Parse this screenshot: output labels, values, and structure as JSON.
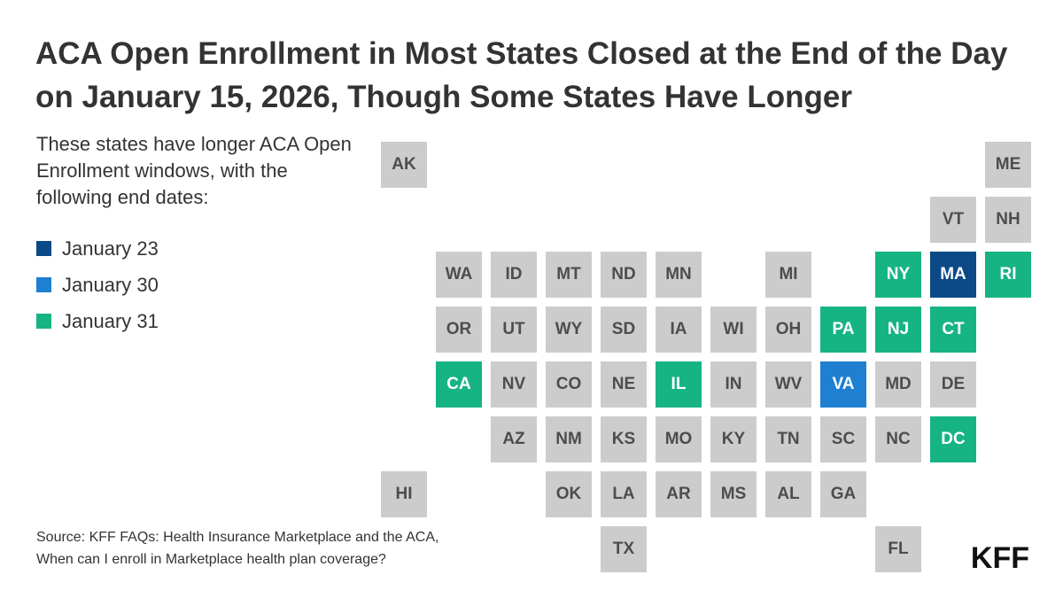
{
  "title": "ACA Open Enrollment in Most States Closed at the End of the Day on January 15, 2026, Though Some States Have Longer",
  "subtitle": "These states have longer ACA Open Enrollment windows, with the following end dates:",
  "legend": [
    {
      "label": "January 23",
      "color": "#0b4a86"
    },
    {
      "label": "January 30",
      "color": "#1f7fd1"
    },
    {
      "label": "January 31",
      "color": "#17b483"
    }
  ],
  "default_color": "#cccccc",
  "states": [
    {
      "code": "AK",
      "col": 0,
      "row": 0,
      "cat": 0
    },
    {
      "code": "ME",
      "col": 11,
      "row": 0,
      "cat": 0
    },
    {
      "code": "VT",
      "col": 10,
      "row": 1,
      "cat": 0
    },
    {
      "code": "NH",
      "col": 11,
      "row": 1,
      "cat": 0
    },
    {
      "code": "WA",
      "col": 1,
      "row": 2,
      "cat": 0
    },
    {
      "code": "ID",
      "col": 2,
      "row": 2,
      "cat": 0
    },
    {
      "code": "MT",
      "col": 3,
      "row": 2,
      "cat": 0
    },
    {
      "code": "ND",
      "col": 4,
      "row": 2,
      "cat": 0
    },
    {
      "code": "MN",
      "col": 5,
      "row": 2,
      "cat": 0
    },
    {
      "code": "MI",
      "col": 7,
      "row": 2,
      "cat": 0
    },
    {
      "code": "NY",
      "col": 9,
      "row": 2,
      "cat": 3
    },
    {
      "code": "MA",
      "col": 10,
      "row": 2,
      "cat": 1
    },
    {
      "code": "RI",
      "col": 11,
      "row": 2,
      "cat": 3
    },
    {
      "code": "OR",
      "col": 1,
      "row": 3,
      "cat": 0
    },
    {
      "code": "UT",
      "col": 2,
      "row": 3,
      "cat": 0
    },
    {
      "code": "WY",
      "col": 3,
      "row": 3,
      "cat": 0
    },
    {
      "code": "SD",
      "col": 4,
      "row": 3,
      "cat": 0
    },
    {
      "code": "IA",
      "col": 5,
      "row": 3,
      "cat": 0
    },
    {
      "code": "WI",
      "col": 6,
      "row": 3,
      "cat": 0
    },
    {
      "code": "OH",
      "col": 7,
      "row": 3,
      "cat": 0
    },
    {
      "code": "PA",
      "col": 8,
      "row": 3,
      "cat": 3
    },
    {
      "code": "NJ",
      "col": 9,
      "row": 3,
      "cat": 3
    },
    {
      "code": "CT",
      "col": 10,
      "row": 3,
      "cat": 3
    },
    {
      "code": "CA",
      "col": 1,
      "row": 4,
      "cat": 3
    },
    {
      "code": "NV",
      "col": 2,
      "row": 4,
      "cat": 0
    },
    {
      "code": "CO",
      "col": 3,
      "row": 4,
      "cat": 0
    },
    {
      "code": "NE",
      "col": 4,
      "row": 4,
      "cat": 0
    },
    {
      "code": "IL",
      "col": 5,
      "row": 4,
      "cat": 3
    },
    {
      "code": "IN",
      "col": 6,
      "row": 4,
      "cat": 0
    },
    {
      "code": "WV",
      "col": 7,
      "row": 4,
      "cat": 0
    },
    {
      "code": "VA",
      "col": 8,
      "row": 4,
      "cat": 2
    },
    {
      "code": "MD",
      "col": 9,
      "row": 4,
      "cat": 0
    },
    {
      "code": "DE",
      "col": 10,
      "row": 4,
      "cat": 0
    },
    {
      "code": "AZ",
      "col": 2,
      "row": 5,
      "cat": 0
    },
    {
      "code": "NM",
      "col": 3,
      "row": 5,
      "cat": 0
    },
    {
      "code": "KS",
      "col": 4,
      "row": 5,
      "cat": 0
    },
    {
      "code": "MO",
      "col": 5,
      "row": 5,
      "cat": 0
    },
    {
      "code": "KY",
      "col": 6,
      "row": 5,
      "cat": 0
    },
    {
      "code": "TN",
      "col": 7,
      "row": 5,
      "cat": 0
    },
    {
      "code": "SC",
      "col": 8,
      "row": 5,
      "cat": 0
    },
    {
      "code": "NC",
      "col": 9,
      "row": 5,
      "cat": 0
    },
    {
      "code": "DC",
      "col": 10,
      "row": 5,
      "cat": 3
    },
    {
      "code": "HI",
      "col": 0,
      "row": 6,
      "cat": 0
    },
    {
      "code": "OK",
      "col": 3,
      "row": 6,
      "cat": 0
    },
    {
      "code": "LA",
      "col": 4,
      "row": 6,
      "cat": 0
    },
    {
      "code": "AR",
      "col": 5,
      "row": 6,
      "cat": 0
    },
    {
      "code": "MS",
      "col": 6,
      "row": 6,
      "cat": 0
    },
    {
      "code": "AL",
      "col": 7,
      "row": 6,
      "cat": 0
    },
    {
      "code": "GA",
      "col": 8,
      "row": 6,
      "cat": 0
    },
    {
      "code": "TX",
      "col": 4,
      "row": 7,
      "cat": 0
    },
    {
      "code": "FL",
      "col": 9,
      "row": 7,
      "cat": 0
    }
  ],
  "source": {
    "line1": "Source: KFF FAQs: Health Insurance Marketplace and the ACA,",
    "line2": "When can I enroll in Marketplace health plan coverage?"
  },
  "logo": "KFF"
}
